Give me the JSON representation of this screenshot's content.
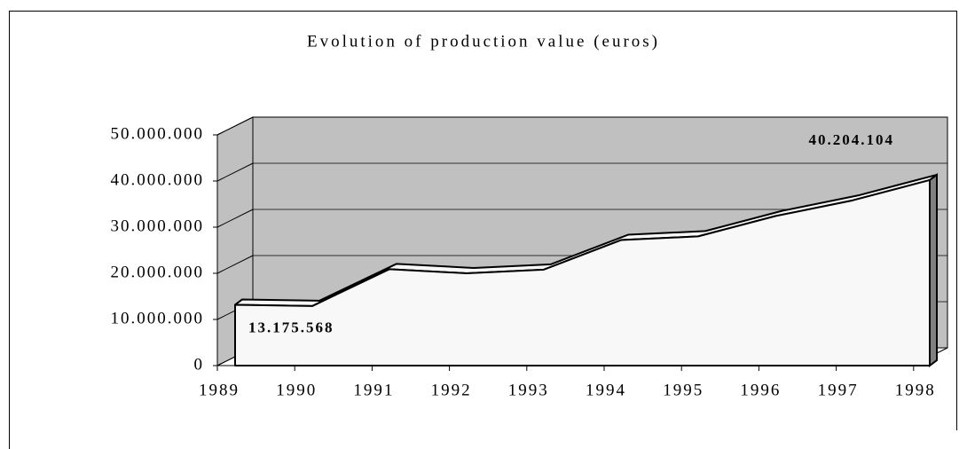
{
  "chart_data": {
    "type": "area",
    "title": "Evolution of production value (euros)",
    "categories": [
      "1989",
      "1990",
      "1991",
      "1992",
      "1993",
      "1994",
      "1995",
      "1996",
      "1997",
      "1998"
    ],
    "values": [
      13175568,
      12900000,
      20900000,
      20000000,
      20800000,
      27200000,
      28000000,
      32400000,
      35800000,
      40204104
    ],
    "value_labels": [
      "13.175.568",
      null,
      null,
      null,
      null,
      null,
      null,
      null,
      null,
      "40.204.104"
    ],
    "color": "#f8f8f8",
    "wall_color": "#c0c0c0",
    "side_color": "#808080",
    "ylim": [
      0,
      50000000
    ],
    "yticks": [
      0,
      {
        "value": 10000000,
        "label": "10.000.000"
      },
      {
        "value": 20000000,
        "label": "20.000.000"
      },
      {
        "value": 30000000,
        "label": "30.000.000"
      },
      {
        "value": 40000000,
        "label": "40.000.000"
      },
      {
        "value": 50000000,
        "label": "50.000.000"
      }
    ],
    "grid": true
  }
}
